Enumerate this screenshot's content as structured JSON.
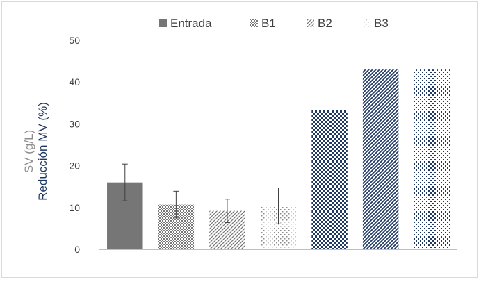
{
  "chart_data": {
    "type": "bar",
    "title": "",
    "xlabel": "",
    "ylabel_lines": [
      "SV (g/L)",
      "Reducción MV (%)"
    ],
    "ylim": [
      0,
      50
    ],
    "yticks": [
      0,
      10,
      20,
      30,
      40,
      50
    ],
    "grid": false,
    "legend_position": "top",
    "series": [
      {
        "name": "Entrada",
        "color": "#767676",
        "pattern": "solid",
        "group": "SV",
        "value": 16,
        "error": 4.4
      },
      {
        "name": "B1",
        "color": "#767676",
        "pattern": "checker",
        "group": "SV",
        "value": 10.7,
        "error": 3.2
      },
      {
        "name": "B2",
        "color": "#767676",
        "pattern": "diagonal",
        "group": "SV",
        "value": 9.2,
        "error": 2.8
      },
      {
        "name": "B3",
        "color": "#767676",
        "pattern": "dots",
        "group": "SV",
        "value": 10.4,
        "error": 4.3
      },
      {
        "name": "B1",
        "color": "#1f3864",
        "pattern": "checker",
        "group": "Reducción MV",
        "value": 33.3,
        "error": null
      },
      {
        "name": "B2",
        "color": "#1f3864",
        "pattern": "diagonal",
        "group": "Reducción MV",
        "value": 43,
        "error": null
      },
      {
        "name": "B3",
        "color": "#1f3864",
        "pattern": "dots",
        "group": "Reducción MV",
        "value": 43,
        "error": null
      }
    ],
    "legend": [
      {
        "name": "Entrada",
        "pattern": "solid"
      },
      {
        "name": "B1",
        "pattern": "checker"
      },
      {
        "name": "B2",
        "pattern": "diagonal"
      },
      {
        "name": "B3",
        "pattern": "dots"
      }
    ],
    "colors": {
      "sv": "#767676",
      "mv": "#1f3864",
      "sv_label": "#8c8c8c",
      "axis": "#bfbfbf",
      "text": "#404040"
    }
  }
}
